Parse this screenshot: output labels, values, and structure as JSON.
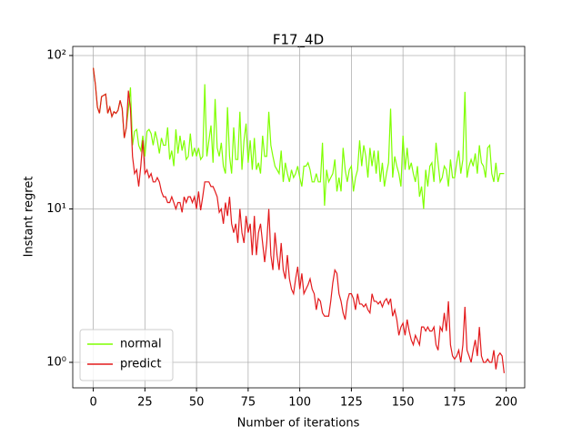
{
  "chart_data": {
    "type": "line",
    "title": "F17_4D",
    "xlabel": "Number of iterations",
    "ylabel": "Instant regret",
    "yscale": "log",
    "grid": true,
    "legend_loc": "lower left",
    "xlim": [
      -9.95,
      208.95
    ],
    "xticks": [
      0,
      25,
      50,
      75,
      100,
      125,
      150,
      175,
      200
    ],
    "ylim": [
      0.682,
      114.6
    ],
    "yticks": [
      {
        "value": 1,
        "label": "10⁰"
      },
      {
        "value": 10,
        "label": "10¹"
      },
      {
        "value": 100,
        "label": "10²"
      }
    ],
    "x": [
      0,
      1,
      2,
      3,
      4,
      5,
      6,
      7,
      8,
      9,
      10,
      11,
      12,
      13,
      14,
      15,
      16,
      17,
      18,
      19,
      20,
      21,
      22,
      23,
      24,
      25,
      26,
      27,
      28,
      29,
      30,
      31,
      32,
      33,
      34,
      35,
      36,
      37,
      38,
      39,
      40,
      41,
      42,
      43,
      44,
      45,
      46,
      47,
      48,
      49,
      50,
      51,
      52,
      53,
      54,
      55,
      56,
      57,
      58,
      59,
      60,
      61,
      62,
      63,
      64,
      65,
      66,
      67,
      68,
      69,
      70,
      71,
      72,
      73,
      74,
      75,
      76,
      77,
      78,
      79,
      80,
      81,
      82,
      83,
      84,
      85,
      86,
      87,
      88,
      89,
      90,
      91,
      92,
      93,
      94,
      95,
      96,
      97,
      98,
      99,
      100,
      101,
      102,
      103,
      104,
      105,
      106,
      107,
      108,
      109,
      110,
      111,
      112,
      113,
      114,
      115,
      116,
      117,
      118,
      119,
      120,
      121,
      122,
      123,
      124,
      125,
      126,
      127,
      128,
      129,
      130,
      131,
      132,
      133,
      134,
      135,
      136,
      137,
      138,
      139,
      140,
      141,
      142,
      143,
      144,
      145,
      146,
      147,
      148,
      149,
      150,
      151,
      152,
      153,
      154,
      155,
      156,
      157,
      158,
      159,
      160,
      161,
      162,
      163,
      164,
      165,
      166,
      167,
      168,
      169,
      170,
      171,
      172,
      173,
      174,
      175,
      176,
      177,
      178,
      179,
      180,
      181,
      182,
      183,
      184,
      185,
      186,
      187,
      188,
      189,
      190,
      191,
      192,
      193,
      194,
      195,
      196,
      197,
      198,
      199
    ],
    "series": [
      {
        "name": "normal",
        "color": "#7fff00",
        "values": [
          83,
          65,
          46,
          42,
          54,
          55,
          56,
          42,
          46,
          40,
          43,
          42,
          44,
          51,
          45,
          29,
          34,
          45,
          62,
          26,
          32,
          33,
          26,
          24,
          30,
          22,
          32,
          33,
          31,
          26,
          32,
          28,
          23,
          29,
          26,
          26,
          34,
          21,
          24,
          19,
          33,
          23,
          30,
          24,
          28,
          21,
          22,
          31,
          22,
          25,
          22,
          25,
          21,
          22,
          65,
          22,
          28,
          35,
          20,
          52,
          25,
          22,
          27,
          19,
          17,
          46,
          22,
          17,
          34,
          21,
          21,
          43,
          18,
          28,
          36,
          20,
          28,
          18,
          29,
          18,
          20,
          17,
          30,
          22,
          22,
          43,
          26,
          22,
          19,
          18,
          17,
          24,
          15,
          20,
          17,
          15,
          18,
          16,
          17,
          19,
          16,
          14,
          19,
          19,
          20,
          18,
          15,
          15,
          17,
          15,
          15,
          27,
          10.5,
          18,
          15,
          16,
          17,
          21,
          13,
          16,
          13,
          25,
          18,
          15,
          18,
          19,
          13,
          16,
          18,
          28,
          19,
          26,
          22,
          16,
          25,
          19,
          24,
          17,
          24,
          15,
          20,
          14,
          17,
          20,
          45,
          16,
          22,
          19,
          17,
          14,
          30,
          18,
          25,
          18,
          20,
          17,
          15,
          19,
          12,
          14,
          10,
          18,
          14,
          19,
          20,
          15,
          27,
          20,
          15,
          16,
          19,
          18,
          14,
          21,
          16,
          16,
          20,
          24,
          17,
          21,
          58,
          16,
          19,
          21,
          19,
          23,
          17,
          26,
          20,
          19,
          16,
          25,
          26,
          17,
          15,
          20,
          15,
          17,
          17,
          17
        ]
      },
      {
        "name": "predict",
        "color": "#e31a1c",
        "values": [
          83,
          65,
          46,
          42,
          54,
          55,
          56,
          42,
          46,
          40,
          43,
          42,
          44,
          51,
          45,
          29,
          34,
          59,
          45,
          22,
          17,
          18,
          14,
          19,
          28,
          17,
          18,
          16,
          17,
          15,
          15,
          16,
          15,
          13,
          12,
          12,
          11,
          11,
          12,
          11,
          10,
          11,
          11,
          9.5,
          12,
          11,
          12,
          12,
          11,
          12,
          10,
          13,
          9.8,
          12,
          15,
          15,
          15,
          14,
          14,
          13,
          12,
          9.5,
          10,
          8,
          11,
          9,
          12,
          8,
          7,
          8,
          6,
          10,
          7,
          6,
          9,
          7,
          8,
          5,
          9,
          5,
          7,
          8,
          6,
          4.5,
          6,
          10,
          5,
          4,
          7,
          5,
          4,
          6,
          4,
          3.5,
          5,
          3.5,
          3,
          2.8,
          3.5,
          4.2,
          3,
          3.8,
          2.8,
          3,
          3.2,
          3.5,
          3,
          2.8,
          2.2,
          2.6,
          2.5,
          2.1,
          2,
          2,
          2,
          2.5,
          3.3,
          4,
          3.8,
          2.8,
          2.5,
          2.1,
          1.9,
          2.5,
          2.8,
          2.8,
          2.6,
          2.2,
          2.8,
          2.4,
          2.4,
          2.3,
          2.4,
          2.2,
          2.1,
          2.8,
          2.5,
          2.5,
          2.4,
          2.5,
          2.3,
          2.5,
          2.6,
          2.4,
          2.6,
          2,
          2.2,
          1.9,
          1.5,
          1.7,
          1.8,
          1.5,
          1.9,
          1.6,
          1.4,
          1.3,
          1.5,
          1.4,
          1.3,
          1.7,
          1.7,
          1.6,
          1.7,
          1.6,
          1.6,
          1.7,
          1.3,
          1.2,
          1.7,
          1.6,
          2.1,
          1.6,
          2.5,
          1.3,
          1.1,
          1.05,
          1.1,
          1.2,
          1,
          1.3,
          2.3,
          1.2,
          1.1,
          1,
          1.2,
          1.4,
          1.1,
          1.7,
          1.1,
          1,
          1,
          1.05,
          1,
          1,
          1.2,
          0.9,
          1.1,
          1.15,
          1.1,
          0.85
        ]
      }
    ]
  }
}
